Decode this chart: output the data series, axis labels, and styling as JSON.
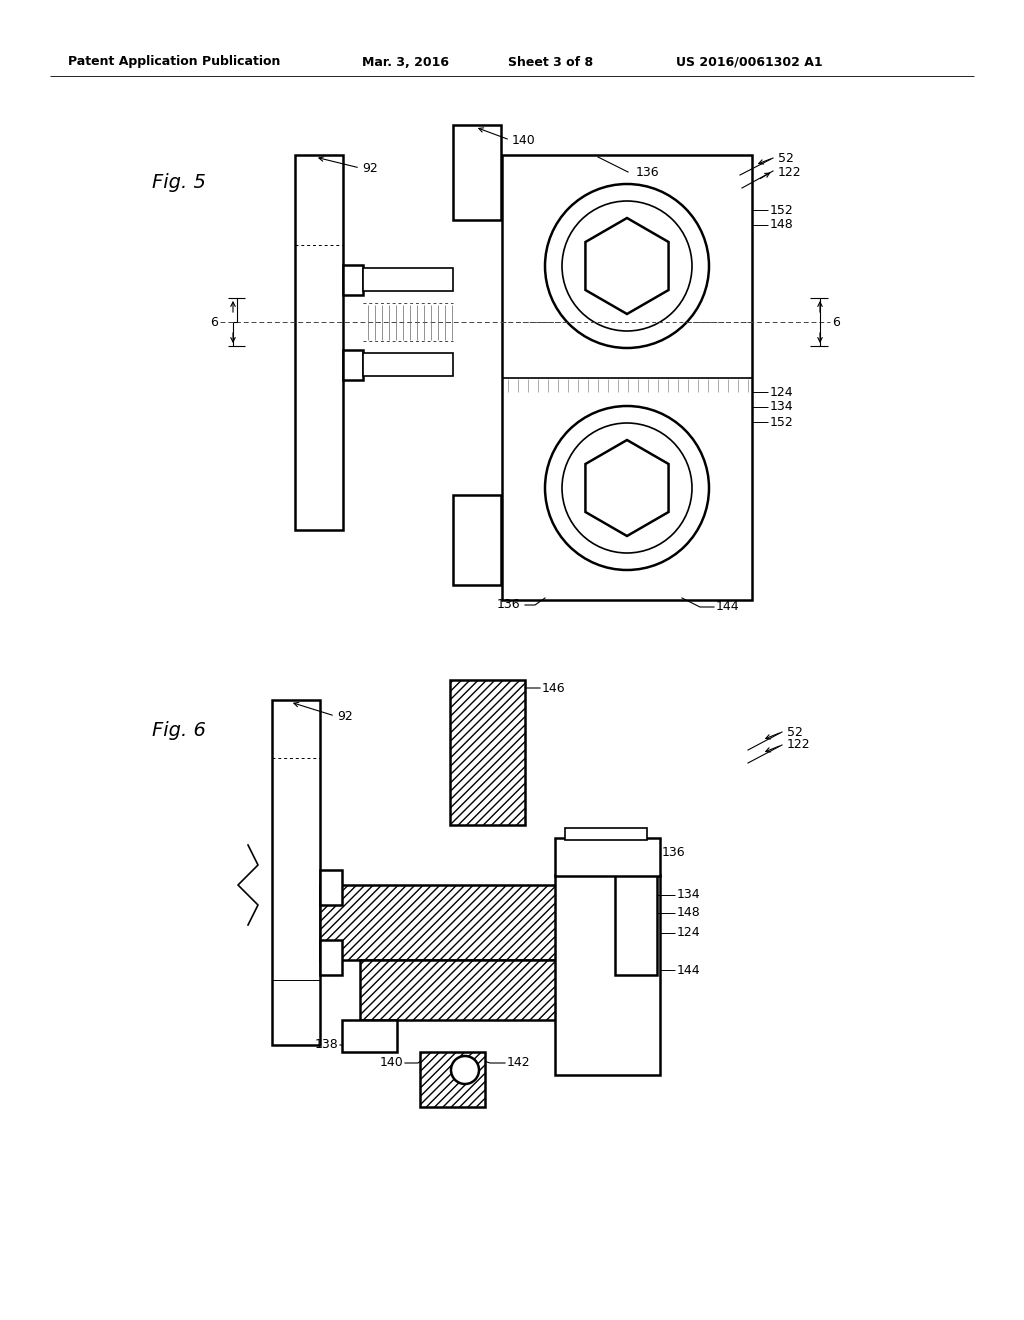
{
  "bg_color": "#ffffff",
  "line_color": "#000000",
  "header_text": "Patent Application Publication",
  "header_date": "Mar. 3, 2016",
  "header_sheet": "Sheet 3 of 8",
  "header_patent": "US 2016/0061302 A1",
  "fig5_label": "Fig. 5",
  "fig6_label": "Fig. 6"
}
